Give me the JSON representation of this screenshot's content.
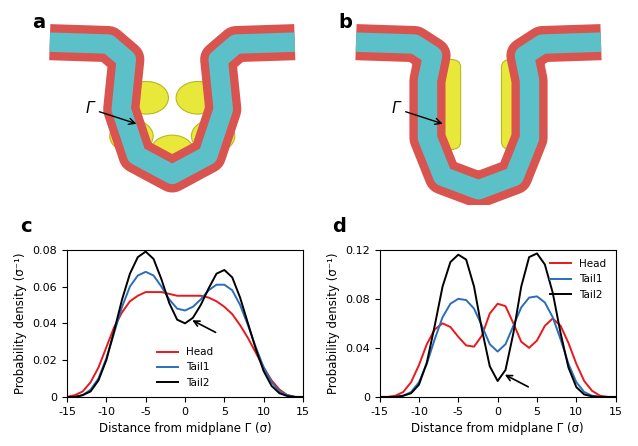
{
  "chart_data": [
    {
      "type": "line",
      "title": "c",
      "x_label": "Distance from midplane Γ (σ)",
      "y_label": "Probability density (σ⁻¹)",
      "x": [
        -15,
        -14,
        -13,
        -12,
        -11,
        -10,
        -9,
        -8,
        -7,
        -6,
        -5,
        -4,
        -3,
        -2,
        -1,
        0,
        1,
        2,
        3,
        4,
        5,
        6,
        7,
        8,
        9,
        10,
        11,
        12,
        13,
        14,
        15
      ],
      "xlim": [
        -15,
        15
      ],
      "xticks": [
        -15,
        -10,
        -5,
        0,
        5,
        10,
        15
      ],
      "ylim": [
        0,
        0.08
      ],
      "yticks": [
        0,
        0.02,
        0.04,
        0.06,
        0.08
      ],
      "legend": "lower center",
      "series": [
        {
          "name": "Head",
          "color": "#e8191c",
          "values": [
            0,
            0.001,
            0.003,
            0.008,
            0.016,
            0.027,
            0.038,
            0.046,
            0.052,
            0.055,
            0.057,
            0.057,
            0.057,
            0.056,
            0.055,
            0.055,
            0.055,
            0.055,
            0.054,
            0.052,
            0.049,
            0.045,
            0.039,
            0.032,
            0.024,
            0.016,
            0.009,
            0.004,
            0.001,
            0,
            0
          ]
        },
        {
          "name": "Tail1",
          "color": "#2a6ebb",
          "values": [
            0,
            0,
            0.001,
            0.004,
            0.01,
            0.021,
            0.035,
            0.049,
            0.06,
            0.066,
            0.068,
            0.066,
            0.06,
            0.053,
            0.048,
            0.047,
            0.049,
            0.053,
            0.058,
            0.061,
            0.061,
            0.058,
            0.05,
            0.039,
            0.027,
            0.016,
            0.008,
            0.003,
            0.001,
            0,
            0
          ]
        },
        {
          "name": "Tail2",
          "color": "#000000",
          "values": [
            0,
            0,
            0.001,
            0.003,
            0.009,
            0.02,
            0.036,
            0.053,
            0.067,
            0.076,
            0.079,
            0.075,
            0.064,
            0.051,
            0.042,
            0.04,
            0.043,
            0.05,
            0.059,
            0.067,
            0.069,
            0.065,
            0.054,
            0.04,
            0.026,
            0.014,
            0.006,
            0.002,
            0.0005,
            0,
            0
          ]
        }
      ]
    },
    {
      "type": "line",
      "title": "d",
      "x_label": "Distance from midplane Γ (σ)",
      "y_label": "Probability density (σ⁻¹)",
      "x": [
        -15,
        -14,
        -13,
        -12,
        -11,
        -10,
        -9,
        -8,
        -7,
        -6,
        -5,
        -4,
        -3,
        -2,
        -1,
        0,
        1,
        2,
        3,
        4,
        5,
        6,
        7,
        8,
        9,
        10,
        11,
        12,
        13,
        14,
        15
      ],
      "xlim": [
        -15,
        15
      ],
      "xticks": [
        -15,
        -10,
        -5,
        0,
        5,
        10,
        15
      ],
      "ylim": [
        0,
        0.12
      ],
      "yticks": [
        0,
        0.04,
        0.08,
        0.12
      ],
      "legend": "upper right",
      "series": [
        {
          "name": "Head",
          "color": "#e8191c",
          "values": [
            0,
            0,
            0.001,
            0.004,
            0.012,
            0.026,
            0.043,
            0.055,
            0.06,
            0.057,
            0.049,
            0.042,
            0.041,
            0.05,
            0.068,
            0.076,
            0.074,
            0.06,
            0.045,
            0.04,
            0.046,
            0.058,
            0.064,
            0.058,
            0.044,
            0.027,
            0.013,
            0.005,
            0.001,
            0,
            0
          ]
        },
        {
          "name": "Tail1",
          "color": "#2a6ebb",
          "values": [
            0,
            0,
            0,
            0.001,
            0.004,
            0.012,
            0.027,
            0.047,
            0.065,
            0.076,
            0.08,
            0.079,
            0.072,
            0.058,
            0.043,
            0.037,
            0.043,
            0.058,
            0.073,
            0.081,
            0.082,
            0.077,
            0.065,
            0.047,
            0.027,
            0.012,
            0.004,
            0.001,
            0,
            0,
            0
          ]
        },
        {
          "name": "Tail2",
          "color": "#000000",
          "values": [
            0,
            0,
            0,
            0.001,
            0.003,
            0.01,
            0.028,
            0.058,
            0.09,
            0.11,
            0.116,
            0.112,
            0.09,
            0.055,
            0.025,
            0.013,
            0.022,
            0.052,
            0.09,
            0.114,
            0.117,
            0.108,
            0.085,
            0.052,
            0.024,
            0.008,
            0.002,
            0.0005,
            0,
            0,
            0
          ]
        }
      ]
    }
  ],
  "images": [
    {
      "label": "a",
      "annotation": "Γ"
    },
    {
      "label": "b",
      "annotation": "Γ"
    }
  ]
}
